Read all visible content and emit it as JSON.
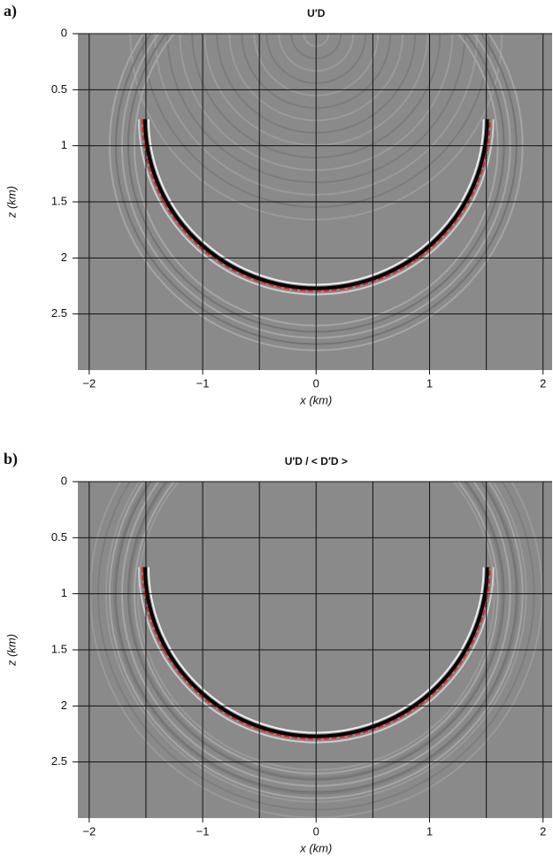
{
  "chart_data": [
    {
      "type": "image",
      "label": "a)",
      "title": "U′D",
      "xlabel": "x (km)",
      "ylabel": "z (km)",
      "xlim": [
        -2.1,
        2.08
      ],
      "ylim": [
        0,
        3
      ],
      "xticks": [
        {
          "value": -2,
          "label": "−2"
        },
        {
          "value": -1,
          "label": "−1"
        },
        0,
        1,
        2
      ],
      "yticks": [
        0,
        0.5,
        1,
        1.5,
        2,
        2.5
      ],
      "xgrid": [
        -2,
        -1.5,
        -1,
        -0.5,
        0,
        0.5,
        1,
        1.5,
        2
      ],
      "grid": true,
      "y_inverted": true
    },
    {
      "type": "image",
      "label": "b)",
      "title": "U′D / < D′D >",
      "xlabel": "x (km)",
      "ylabel": "z (km)",
      "xlim": [
        -2.1,
        2.08
      ],
      "ylim": [
        0,
        3
      ],
      "xticks": [
        {
          "value": -2,
          "label": "−2"
        },
        {
          "value": -1,
          "label": "−1"
        },
        0,
        1,
        2
      ],
      "yticks": [
        0,
        0.5,
        1,
        1.5,
        2,
        2.5
      ],
      "xgrid": [
        -2,
        -1.5,
        -1,
        -0.5,
        0,
        0.5,
        1,
        1.5,
        2
      ],
      "grid": true,
      "y_inverted": true
    }
  ]
}
